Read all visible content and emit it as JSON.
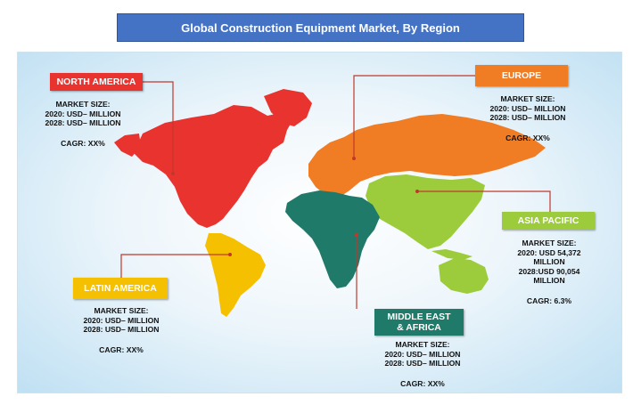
{
  "title": "Global Construction Equipment Market, By Region",
  "colors": {
    "title_bg": "#4472c4",
    "north_america": "#e8332f",
    "europe": "#f07c24",
    "asia_pacific": "#9ccc3c",
    "middle_east_africa": "#1f7a6a",
    "latin_america": "#f5c000",
    "connector": "#c0392b"
  },
  "regions": {
    "north_america": {
      "name": "NORTH AMERICA",
      "market_size_label": "MARKET SIZE:",
      "line_2020": "2020: USD– MILLION",
      "line_2028": "2028: USD– MILLION",
      "cagr": "CAGR: XX%"
    },
    "europe": {
      "name": "EUROPE",
      "market_size_label": "MARKET SIZE:",
      "line_2020": "2020: USD– MILLION",
      "line_2028": "2028: USD– MILLION",
      "cagr": "CAGR: XX%"
    },
    "asia_pacific": {
      "name": "ASIA PACIFIC",
      "market_size_label": "MARKET SIZE:",
      "line_2020": "2020: USD 54,372",
      "line_2020_unit": "MILLION",
      "line_2028": "2028:USD 90,054",
      "line_2028_unit": "MILLION",
      "cagr": "CAGR: 6.3%"
    },
    "latin_america": {
      "name": "LATIN AMERICA",
      "market_size_label": "MARKET SIZE:",
      "line_2020": "2020: USD– MILLION",
      "line_2028": "2028: USD– MILLION",
      "cagr": "CAGR: XX%"
    },
    "middle_east_africa": {
      "name_line1": "MIDDLE EAST",
      "name_line2": "& AFRICA",
      "market_size_label": "MARKET SIZE:",
      "line_2020": "2020: USD– MILLION",
      "line_2028": "2028: USD– MILLION",
      "cagr": "CAGR: XX%"
    }
  }
}
